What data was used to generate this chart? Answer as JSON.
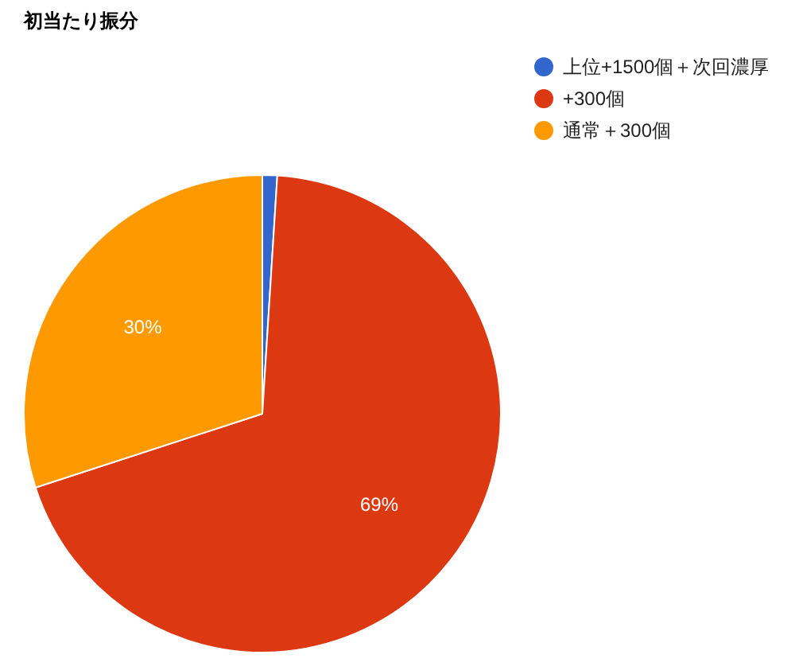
{
  "chart_data": {
    "type": "pie",
    "title": "初当たり振分",
    "categories": [
      "上位+1500個＋次回濃厚",
      "+300個",
      "通常＋300個"
    ],
    "values": [
      1,
      69,
      30
    ],
    "colors": [
      "#3366cc",
      "#dc3912",
      "#ff9900"
    ],
    "value_labels": [
      null,
      "69%",
      "30%"
    ],
    "legend": "top right"
  }
}
